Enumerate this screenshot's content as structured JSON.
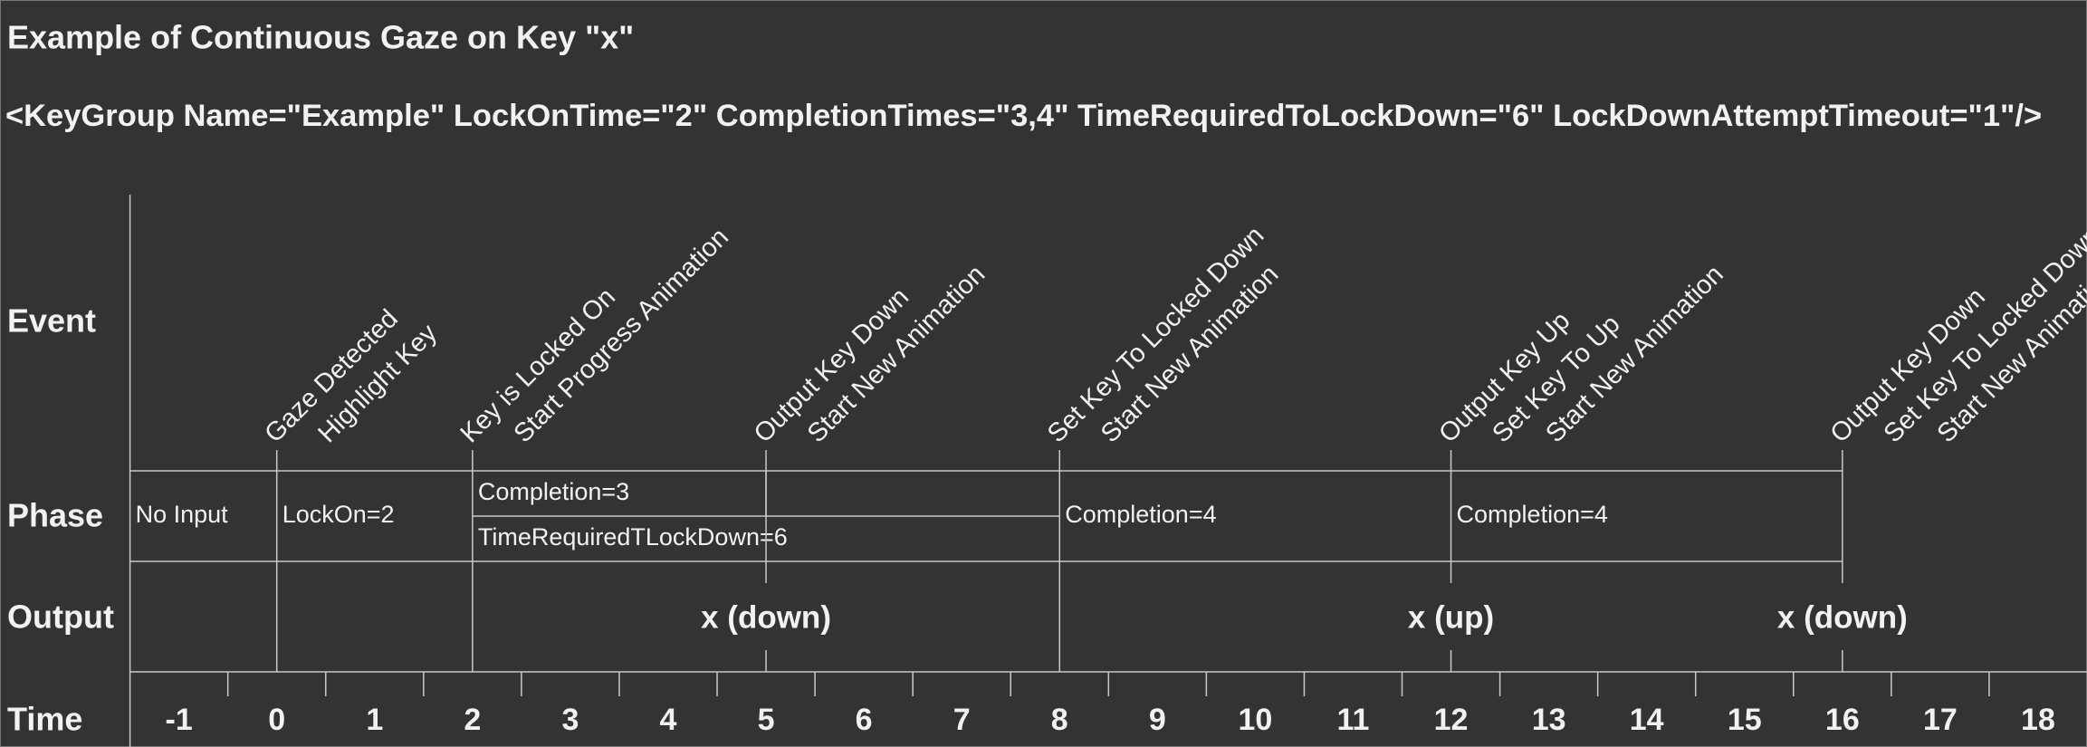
{
  "header": {
    "title": "Example of Continuous Gaze on Key \"x\"",
    "key_group": "<KeyGroup Name=\"Example\" LockOnTime=\"2\" CompletionTimes=\"3,4\" TimeRequiredToLockDown=\"6\" LockDownAttemptTimeout=\"1\"/>"
  },
  "rows": {
    "event": "Event",
    "phase": "Phase",
    "output": "Output",
    "time": "Time"
  },
  "time_axis": {
    "range": [
      -1.5,
      18.5
    ],
    "ticks": [
      -1,
      0,
      1,
      2,
      3,
      4,
      5,
      6,
      7,
      8,
      9,
      10,
      11,
      12,
      13,
      14,
      15,
      16,
      17,
      18
    ]
  },
  "events": [
    {
      "time": 0,
      "lines": [
        "Gaze Detected",
        "Highlight Key"
      ],
      "full": true
    },
    {
      "time": 2,
      "lines": [
        "Key is Locked On",
        "Start Progress Animation"
      ],
      "full": true
    },
    {
      "time": 5,
      "lines": [
        "Output Key Down",
        "Start New Animation"
      ],
      "full": false
    },
    {
      "time": 8,
      "lines": [
        "Set Key To Locked Down",
        "Start New Animation"
      ],
      "full": true
    },
    {
      "time": 12,
      "lines": [
        "Output Key Up",
        "Set Key To Up",
        "Start New Animation"
      ],
      "full": false
    },
    {
      "time": 16,
      "lines": [
        "Output Key Down",
        "Set Key To Locked Down",
        "Start New Animation"
      ],
      "full": false
    }
  ],
  "phases": [
    {
      "label": "No Input",
      "start": -1.5,
      "end": 0,
      "lane": "full"
    },
    {
      "label": "LockOn=2",
      "start": 0,
      "end": 2,
      "lane": "full"
    },
    {
      "label": "Completion=3",
      "start": 2,
      "end": 5,
      "lane": "top"
    },
    {
      "label": "TimeRequiredTLockDown=6",
      "start": 2,
      "end": 8,
      "lane": "bottom"
    },
    {
      "label": "Completion=4",
      "start": 8,
      "end": 12,
      "lane": "full"
    },
    {
      "label": "Completion=4",
      "start": 12,
      "end": 16,
      "lane": "full"
    }
  ],
  "outputs": [
    {
      "label": "x (down)",
      "time": 5
    },
    {
      "label": "x (up)",
      "time": 12
    },
    {
      "label": "x (down)",
      "time": 16
    }
  ]
}
